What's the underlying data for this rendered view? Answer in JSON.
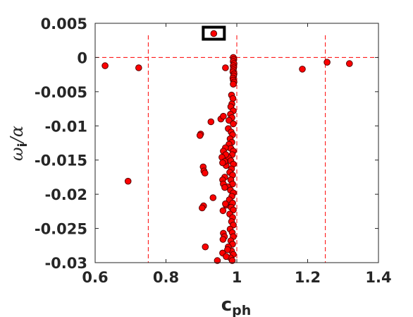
{
  "chart_data": {
    "type": "scatter",
    "title": "",
    "xlabel": "c",
    "xlabel_sub": "ph",
    "ylabel_omega": "ω",
    "ylabel_sub": "i",
    "ylabel_rest": "/α",
    "xlim": [
      0.6,
      1.4
    ],
    "ylim": [
      -0.03,
      0.005
    ],
    "x_ticks": [
      0.6,
      0.8,
      1.0,
      1.2,
      1.4
    ],
    "x_tick_labels": [
      "0.6",
      "0.8",
      "1",
      "1.2",
      "1.4"
    ],
    "y_ticks": [
      0.005,
      0,
      -0.005,
      -0.01,
      -0.015,
      -0.02,
      -0.025,
      -0.03
    ],
    "y_tick_labels": [
      "0.005",
      "0",
      "-0.005",
      "-0.01",
      "-0.015",
      "-0.02",
      "-0.025",
      "-0.03"
    ],
    "grid": false,
    "reference_lines": {
      "horizontal_y": 0,
      "vertical_x": [
        0.75,
        1.0,
        1.25
      ]
    },
    "highlighted_point": {
      "x": 0.935,
      "y": 0.0035
    },
    "colors": {
      "marker_fill": "#ff0000",
      "marker_edge": "#5a0000",
      "reference_line": "#ff0000",
      "highlight_box": "#000000",
      "axis": "#262626"
    },
    "series": [
      {
        "points": [
          [
            0.935,
            0.0035
          ],
          [
            0.628,
            -0.0012
          ],
          [
            0.723,
            -0.0015
          ],
          [
            1.185,
            -0.0017
          ],
          [
            1.255,
            -0.0007
          ],
          [
            1.318,
            -0.0009
          ],
          [
            0.693,
            -0.0181
          ],
          [
            0.99,
            0.0
          ],
          [
            0.991,
            -0.0003
          ],
          [
            0.99,
            -0.0006
          ],
          [
            0.992,
            -0.0009
          ],
          [
            0.99,
            -0.0012
          ],
          [
            0.991,
            -0.0015
          ],
          [
            0.99,
            -0.0018
          ],
          [
            0.989,
            -0.0021
          ],
          [
            0.992,
            -0.0024
          ],
          [
            0.991,
            -0.0027
          ],
          [
            0.989,
            -0.003
          ],
          [
            0.99,
            -0.0033
          ],
          [
            0.992,
            -0.0036
          ],
          [
            0.99,
            -0.0039
          ],
          [
            0.968,
            -0.0015
          ],
          [
            0.985,
            -0.0055
          ],
          [
            0.989,
            -0.006
          ],
          [
            0.986,
            -0.0068
          ],
          [
            0.983,
            -0.0072
          ],
          [
            0.99,
            -0.0078
          ],
          [
            0.982,
            -0.0083
          ],
          [
            0.986,
            -0.0088
          ],
          [
            0.978,
            -0.0092
          ],
          [
            0.99,
            -0.0097
          ],
          [
            0.976,
            -0.0104
          ],
          [
            0.984,
            -0.0109
          ],
          [
            0.988,
            -0.0113
          ],
          [
            0.981,
            -0.0119
          ],
          [
            0.986,
            -0.0124
          ],
          [
            0.978,
            -0.0127
          ],
          [
            0.983,
            -0.0133
          ],
          [
            0.99,
            -0.0137
          ],
          [
            0.987,
            -0.0142
          ],
          [
            0.976,
            -0.0146
          ],
          [
            0.983,
            -0.0151
          ],
          [
            0.97,
            -0.0158
          ],
          [
            0.99,
            -0.0156
          ],
          [
            0.985,
            -0.0163
          ],
          [
            0.98,
            -0.0168
          ],
          [
            0.988,
            -0.0172
          ],
          [
            0.966,
            -0.0175
          ],
          [
            0.983,
            -0.0179
          ],
          [
            0.988,
            -0.0185
          ],
          [
            0.975,
            -0.0189
          ],
          [
            0.982,
            -0.0194
          ],
          [
            0.99,
            -0.0198
          ],
          [
            0.986,
            -0.0203
          ],
          [
            0.979,
            -0.0208
          ],
          [
            0.988,
            -0.0213
          ],
          [
            0.97,
            -0.0216
          ],
          [
            0.984,
            -0.0219
          ],
          [
            0.99,
            -0.0223
          ],
          [
            0.98,
            -0.0229
          ],
          [
            0.988,
            -0.0234
          ],
          [
            0.985,
            -0.024
          ],
          [
            0.99,
            -0.0245
          ],
          [
            0.981,
            -0.0251
          ],
          [
            0.987,
            -0.0256
          ],
          [
            0.99,
            -0.0262
          ],
          [
            0.983,
            -0.0268
          ],
          [
            0.988,
            -0.0273
          ],
          [
            0.976,
            -0.0277
          ],
          [
            0.985,
            -0.0283
          ],
          [
            0.99,
            -0.0288
          ],
          [
            0.982,
            -0.0293
          ],
          [
            0.987,
            -0.0297
          ],
          [
            0.955,
            -0.009
          ],
          [
            0.962,
            -0.0086
          ],
          [
            0.927,
            -0.0094
          ],
          [
            0.898,
            -0.0112
          ],
          [
            0.896,
            -0.0114
          ],
          [
            0.968,
            -0.0132
          ],
          [
            0.962,
            -0.0137
          ],
          [
            0.969,
            -0.0142
          ],
          [
            0.958,
            -0.0146
          ],
          [
            0.966,
            -0.0152
          ],
          [
            0.96,
            -0.0154
          ],
          [
            0.905,
            -0.016
          ],
          [
            0.907,
            -0.0166
          ],
          [
            0.91,
            -0.0169
          ],
          [
            0.96,
            -0.0179
          ],
          [
            0.962,
            -0.0185
          ],
          [
            0.966,
            -0.019
          ],
          [
            0.933,
            -0.0205
          ],
          [
            0.906,
            -0.0217
          ],
          [
            0.902,
            -0.022
          ],
          [
            0.968,
            -0.0214
          ],
          [
            0.961,
            -0.0224
          ],
          [
            0.962,
            -0.0257
          ],
          [
            0.965,
            -0.0262
          ],
          [
            0.961,
            -0.0266
          ],
          [
            0.911,
            -0.0277
          ],
          [
            0.96,
            -0.0286
          ],
          [
            0.945,
            -0.0297
          ],
          [
            0.97,
            -0.0291
          ],
          [
            0.974,
            -0.0281
          ]
        ]
      }
    ]
  }
}
